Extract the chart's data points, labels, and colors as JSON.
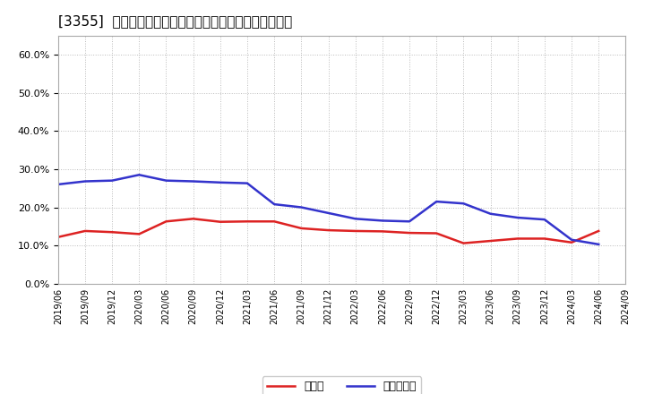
{
  "title": "[3355]  現預金、有利子負債の総資産に対する比率の推移",
  "x_labels": [
    "2019/06",
    "2019/09",
    "2019/12",
    "2020/03",
    "2020/06",
    "2020/09",
    "2020/12",
    "2021/03",
    "2021/06",
    "2021/09",
    "2021/12",
    "2022/03",
    "2022/06",
    "2022/09",
    "2022/12",
    "2023/03",
    "2023/06",
    "2023/09",
    "2023/12",
    "2024/03",
    "2024/06",
    "2024/09"
  ],
  "cash_values": [
    0.122,
    0.138,
    0.135,
    0.13,
    0.163,
    0.17,
    0.162,
    0.163,
    0.163,
    0.145,
    0.14,
    0.138,
    0.137,
    0.133,
    0.132,
    0.106,
    0.112,
    0.118,
    0.118,
    0.108,
    0.138,
    null
  ],
  "debt_values": [
    0.26,
    0.268,
    0.27,
    0.285,
    0.27,
    0.268,
    0.265,
    0.263,
    0.208,
    0.2,
    0.185,
    0.17,
    0.165,
    0.163,
    0.215,
    0.21,
    0.183,
    0.173,
    0.168,
    0.115,
    0.103,
    null
  ],
  "cash_color": "#dd2222",
  "debt_color": "#3333cc",
  "legend_cash": "現預金",
  "legend_debt": "有利子負債",
  "ylim": [
    0.0,
    0.65
  ],
  "yticks": [
    0.0,
    0.1,
    0.2,
    0.3,
    0.4,
    0.5,
    0.6
  ],
  "background_color": "#ffffff",
  "grid_color": "#aaaaaa",
  "title_fontsize": 11
}
